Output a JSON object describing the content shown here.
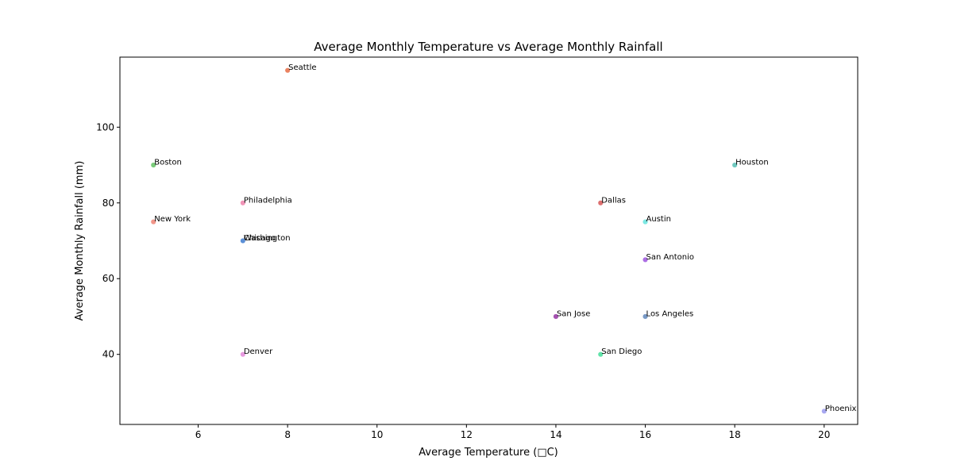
{
  "chart_data": {
    "type": "scatter",
    "title": "Average Monthly Temperature vs Average Monthly Rainfall",
    "xlabel": "Average Temperature (□C)",
    "ylabel": "Average Monthly Rainfall (mm)",
    "xlim": [
      4.25,
      20.75
    ],
    "ylim": [
      21.5,
      118.5
    ],
    "xticks": [
      6,
      8,
      10,
      12,
      14,
      16,
      18,
      20
    ],
    "yticks": [
      40,
      60,
      80,
      100
    ],
    "grid": false,
    "points": [
      {
        "label": "New York",
        "x": 5,
        "y": 75,
        "color": "#f08a7c"
      },
      {
        "label": "Boston",
        "x": 5,
        "y": 90,
        "color": "#6cc56c"
      },
      {
        "label": "Chicago",
        "x": 7,
        "y": 70,
        "color": "#5b8fd6"
      },
      {
        "label": "Washington",
        "x": 7,
        "y": 70,
        "color": "#5b8fd6"
      },
      {
        "label": "Philadelphia",
        "x": 7,
        "y": 80,
        "color": "#f08ab0"
      },
      {
        "label": "Denver",
        "x": 7,
        "y": 40,
        "color": "#e48fdb"
      },
      {
        "label": "Seattle",
        "x": 8,
        "y": 115,
        "color": "#e8744f"
      },
      {
        "label": "San Jose",
        "x": 14,
        "y": 50,
        "color": "#9b3fa8"
      },
      {
        "label": "Dallas",
        "x": 15,
        "y": 80,
        "color": "#d95f5f"
      },
      {
        "label": "San Diego",
        "x": 15,
        "y": 40,
        "color": "#4fe0a0"
      },
      {
        "label": "Austin",
        "x": 16,
        "y": 75,
        "color": "#6ee6e0"
      },
      {
        "label": "San Antonio",
        "x": 16,
        "y": 65,
        "color": "#a35ee0"
      },
      {
        "label": "Los Angeles",
        "x": 16,
        "y": 50,
        "color": "#6a8fc0"
      },
      {
        "label": "Houston",
        "x": 18,
        "y": 90,
        "color": "#5fc2b8"
      },
      {
        "label": "Phoenix",
        "x": 20,
        "y": 25,
        "color": "#9e9ef0"
      }
    ]
  }
}
